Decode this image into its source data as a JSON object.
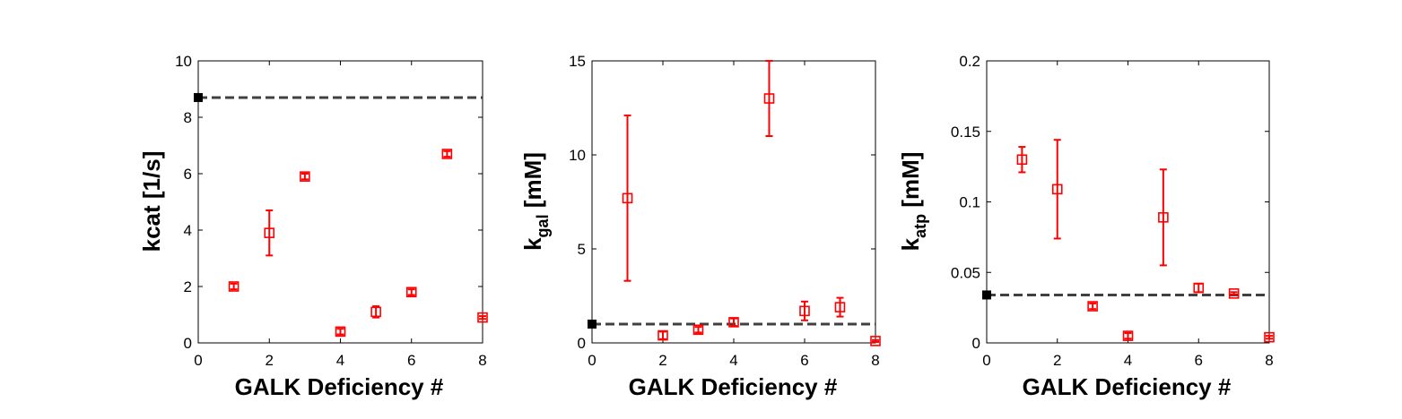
{
  "colors": {
    "points": "#ff0000",
    "reference": "#404040",
    "reference_marker": "#000000",
    "axes": "#000000"
  },
  "chart_data": [
    {
      "type": "scatter",
      "ylabel_main": "kcat [1/s]",
      "ylabel_sub": "",
      "xlabel": "GALK Deficiency #",
      "xlim": [
        0,
        8
      ],
      "ylim": [
        0,
        10
      ],
      "xticks": [
        "0",
        "2",
        "4",
        "6",
        "8"
      ],
      "yticks": [
        "0",
        "2",
        "4",
        "6",
        "8",
        "10"
      ],
      "reference": {
        "x": 0,
        "y": 8.7,
        "style": "dashed"
      },
      "x": [
        1,
        2,
        3,
        4,
        5,
        6,
        7,
        8
      ],
      "y": [
        2.0,
        3.9,
        5.9,
        0.4,
        1.1,
        1.8,
        6.7,
        0.9
      ],
      "err": [
        0.1,
        0.8,
        0.1,
        0.1,
        0.2,
        0.1,
        0.1,
        0.05
      ]
    },
    {
      "type": "scatter",
      "ylabel_main": "k",
      "ylabel_sub": "gal",
      "ylabel_unit": " [mM]",
      "xlabel": "GALK Deficiency #",
      "xlim": [
        0,
        8
      ],
      "ylim": [
        0,
        15
      ],
      "xticks": [
        "0",
        "2",
        "4",
        "6",
        "8"
      ],
      "yticks": [
        "0",
        "5",
        "10",
        "15"
      ],
      "reference": {
        "x": 0,
        "y": 1.0,
        "style": "dashed"
      },
      "x": [
        1,
        2,
        3,
        4,
        5,
        6,
        7,
        8
      ],
      "y": [
        7.7,
        0.4,
        0.7,
        1.1,
        13.0,
        1.7,
        1.9,
        0.1
      ],
      "err": [
        4.4,
        0.2,
        0.15,
        0.2,
        2.0,
        0.5,
        0.5,
        0.05
      ]
    },
    {
      "type": "scatter",
      "ylabel_main": "k",
      "ylabel_sub": "atp",
      "ylabel_unit": " [mM]",
      "xlabel": "GALK Deficiency #",
      "xlim": [
        0,
        8
      ],
      "ylim": [
        0,
        0.2
      ],
      "xticks": [
        "0",
        "2",
        "4",
        "6",
        "8"
      ],
      "yticks": [
        "0",
        "0.05",
        "0.1",
        "0.15",
        "0.2"
      ],
      "reference": {
        "x": 0,
        "y": 0.034,
        "style": "dashed"
      },
      "x": [
        1,
        2,
        3,
        4,
        5,
        6,
        7,
        8
      ],
      "y": [
        0.13,
        0.109,
        0.026,
        0.005,
        0.089,
        0.039,
        0.035,
        0.004
      ],
      "err": [
        0.009,
        0.035,
        0.002,
        0.002,
        0.034,
        0.003,
        0.001,
        0.001
      ]
    }
  ]
}
